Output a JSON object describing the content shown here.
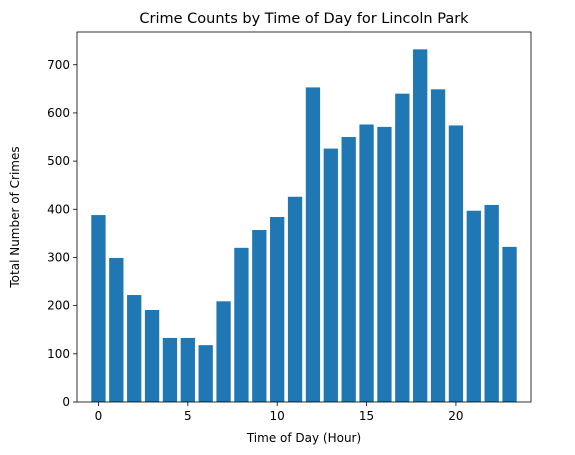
{
  "chart_data": {
    "type": "bar",
    "title": "Crime Counts by Time of Day for Lincoln Park",
    "xlabel": "Time of Day (Hour)",
    "ylabel": "Total Number of Crimes",
    "x": [
      0,
      1,
      2,
      3,
      4,
      5,
      6,
      7,
      8,
      9,
      10,
      11,
      12,
      13,
      14,
      15,
      16,
      17,
      18,
      19,
      20,
      21,
      22,
      23
    ],
    "values": [
      388,
      299,
      222,
      191,
      133,
      133,
      118,
      209,
      320,
      357,
      384,
      426,
      653,
      526,
      550,
      576,
      571,
      640,
      732,
      649,
      574,
      397,
      409,
      322
    ],
    "xlim": [
      -1.2,
      24.2
    ],
    "ylim": [
      0,
      768
    ],
    "xticks": [
      0,
      5,
      10,
      15,
      20
    ],
    "yticks": [
      0,
      100,
      200,
      300,
      400,
      500,
      600,
      700
    ],
    "bar_color": "#1f77b4",
    "grid": false
  }
}
